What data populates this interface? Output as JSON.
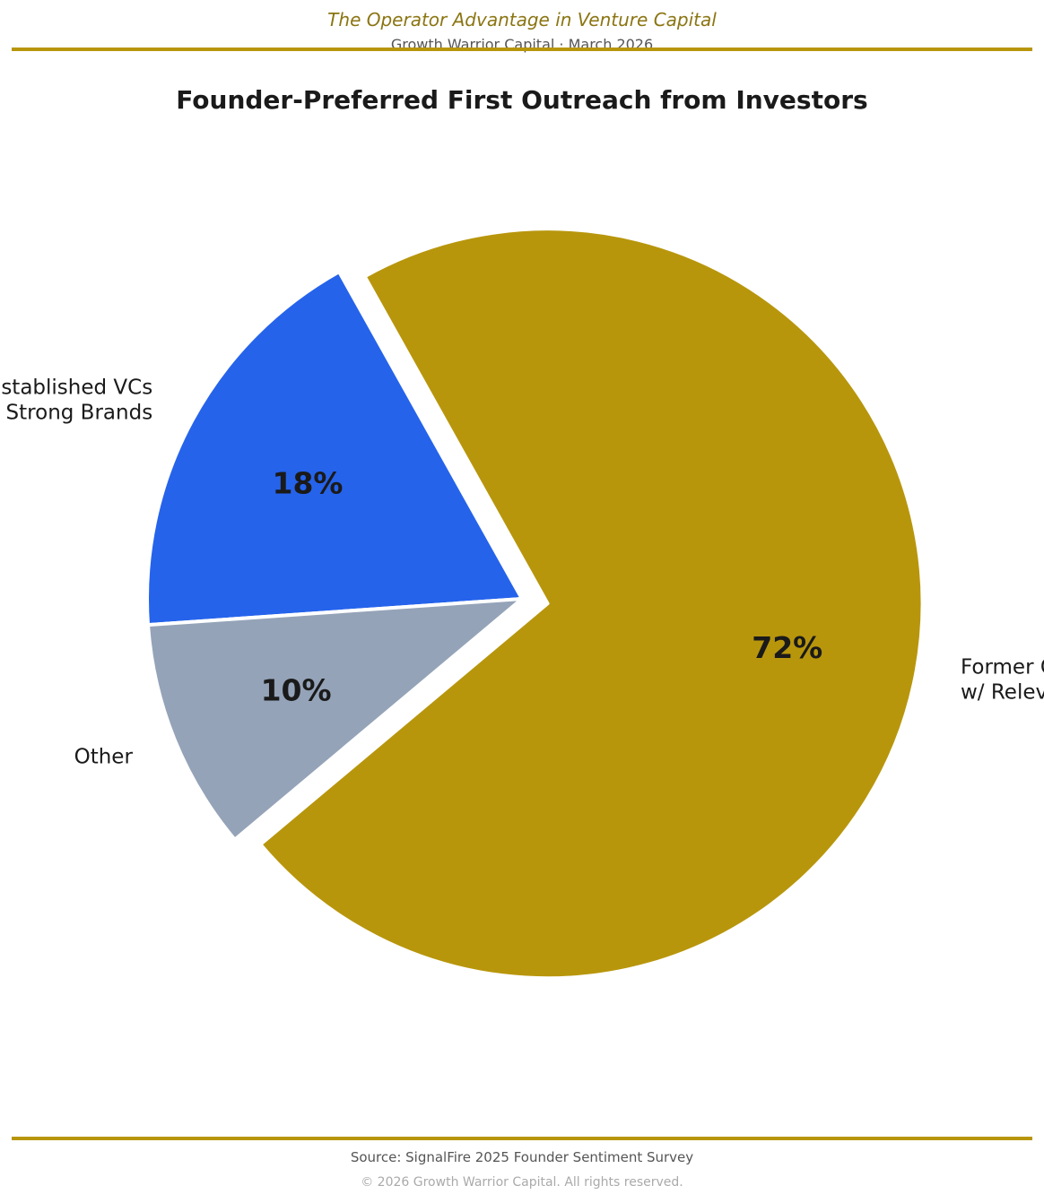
{
  "header": {
    "title": "The Operator Advantage in Venture Capital",
    "subtitle": "Growth Warrior Capital  ·  March 2026"
  },
  "footer": {
    "source": "Source: SignalFire 2025 Founder Sentiment Survey",
    "copyright": "© 2026 Growth Warrior Capital. All rights reserved."
  },
  "colors": {
    "accent": "#B8960C",
    "header_text": "#8B7512"
  },
  "chart_data": {
    "type": "pie",
    "title": "Founder-Preferred First Outreach from Investors",
    "slices": [
      {
        "label_lines": [
          "Former Operators",
          "w/ Relevant Experience"
        ],
        "value": 72,
        "value_label": "72%",
        "color": "#B8960C",
        "exploded": true
      },
      {
        "label_lines": [
          "Established VCs",
          "w/ Strong Brands"
        ],
        "value": 18,
        "value_label": "18%",
        "color": "#2563EB",
        "exploded": false
      },
      {
        "label_lines": [
          "Other"
        ],
        "value": 10,
        "value_label": "10%",
        "color": "#94A3B8",
        "exploded": false
      }
    ]
  }
}
